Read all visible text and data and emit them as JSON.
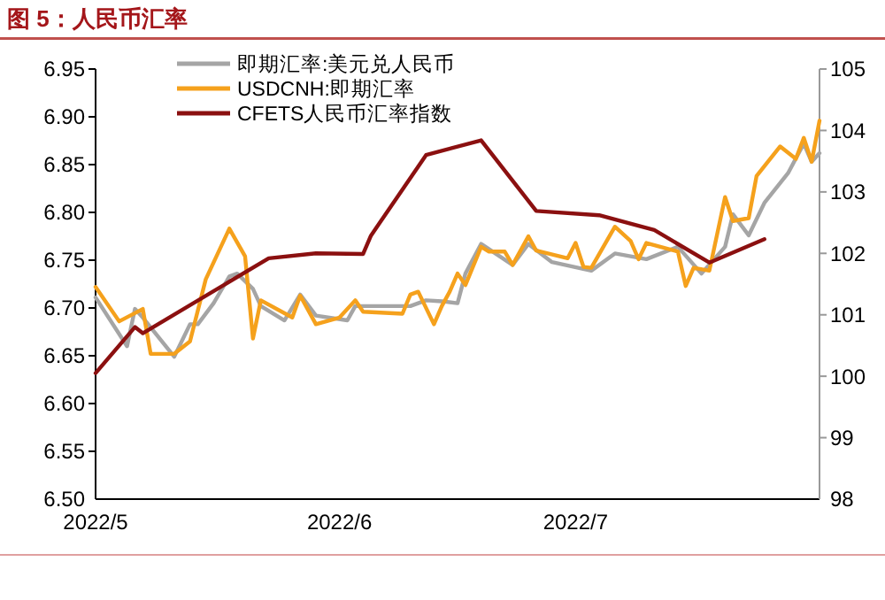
{
  "chart_data": {
    "type": "line",
    "title": "图 5：人民币汇率",
    "xlim": [
      "2022-05-01",
      "2022-08-01"
    ],
    "xticks": [
      {
        "value": "2022-05-01",
        "label": "2022/5"
      },
      {
        "value": "2022-06-01",
        "label": "2022/6"
      },
      {
        "value": "2022-07-01",
        "label": "2022/7"
      }
    ],
    "ylim": [
      6.5,
      6.95
    ],
    "yticks": [
      {
        "value": 6.5,
        "label": "6.50"
      },
      6.55,
      {
        "value": 6.6,
        "label": "6.60"
      },
      6.65,
      {
        "value": 6.7,
        "label": "6.70"
      },
      6.75,
      {
        "value": 6.8,
        "label": "6.80"
      },
      6.85,
      {
        "value": 6.9,
        "label": "6.90"
      },
      6.95
    ],
    "y2lim": [
      98,
      105
    ],
    "y2ticks": [
      98,
      99,
      100,
      101,
      102,
      103,
      104,
      105
    ],
    "legend": "top",
    "grid": false,
    "marker": "none",
    "line_style": "solid",
    "series": [
      {
        "name": "即期汇率:美元兑人民币",
        "color": "#a5a5a5",
        "x": [
          "2022-05-01",
          "2022-05-05",
          "2022-05-06",
          "2022-05-07",
          "2022-05-11",
          "2022-05-13",
          "2022-05-14",
          "2022-05-16",
          "2022-05-18",
          "2022-05-19",
          "2022-05-21",
          "2022-05-22",
          "2022-05-25",
          "2022-05-27",
          "2022-05-29",
          "2022-06-02",
          "2022-06-03",
          "2022-06-10",
          "2022-06-12",
          "2022-06-14",
          "2022-06-16",
          "2022-06-17",
          "2022-06-19",
          "2022-06-23",
          "2022-06-25",
          "2022-06-28",
          "2022-07-03",
          "2022-07-06",
          "2022-07-10",
          "2022-07-14",
          "2022-07-17",
          "2022-07-20",
          "2022-07-21",
          "2022-07-23",
          "2022-07-25",
          "2022-07-28",
          "2022-07-30",
          "2022-07-31",
          "2022-08-01"
        ],
        "values": [
          6.711,
          6.66,
          6.699,
          6.69,
          6.649,
          6.683,
          6.683,
          6.705,
          6.733,
          6.736,
          6.72,
          6.702,
          6.687,
          6.714,
          6.692,
          6.687,
          6.702,
          6.702,
          6.708,
          6.707,
          6.705,
          6.736,
          6.767,
          6.745,
          6.767,
          6.748,
          6.739,
          6.757,
          6.751,
          6.764,
          6.736,
          6.764,
          6.798,
          6.776,
          6.81,
          6.841,
          6.872,
          6.853,
          6.862
        ]
      },
      {
        "name": "USDCNH:即期汇率",
        "color": "#f5a11c",
        "x": [
          "2022-05-01",
          "2022-05-04",
          "2022-05-07",
          "2022-05-08",
          "2022-05-11",
          "2022-05-13",
          "2022-05-15",
          "2022-05-18",
          "2022-05-20",
          "2022-05-21",
          "2022-05-22",
          "2022-05-26",
          "2022-05-27",
          "2022-05-29",
          "2022-06-01",
          "2022-06-03",
          "2022-06-04",
          "2022-06-09",
          "2022-06-10",
          "2022-06-11",
          "2022-06-13",
          "2022-06-14",
          "2022-06-15",
          "2022-06-16",
          "2022-06-17",
          "2022-06-19",
          "2022-06-20",
          "2022-06-22",
          "2022-06-23",
          "2022-06-25",
          "2022-06-26",
          "2022-06-30",
          "2022-07-01",
          "2022-07-02",
          "2022-07-03",
          "2022-07-06",
          "2022-07-08",
          "2022-07-09",
          "2022-07-10",
          "2022-07-14",
          "2022-07-15",
          "2022-07-16",
          "2022-07-18",
          "2022-07-20",
          "2022-07-21",
          "2022-07-23",
          "2022-07-24",
          "2022-07-27",
          "2022-07-29",
          "2022-07-30",
          "2022-07-31",
          "2022-08-01"
        ],
        "values": [
          6.722,
          6.686,
          6.699,
          6.652,
          6.652,
          6.665,
          6.73,
          6.783,
          6.754,
          6.668,
          6.708,
          6.69,
          6.713,
          6.683,
          6.69,
          6.708,
          6.696,
          6.694,
          6.714,
          6.717,
          6.683,
          6.702,
          6.717,
          6.736,
          6.724,
          6.764,
          6.759,
          6.759,
          6.745,
          6.775,
          6.76,
          6.752,
          6.768,
          6.743,
          6.742,
          6.785,
          6.77,
          6.751,
          6.768,
          6.759,
          6.723,
          6.742,
          6.739,
          6.816,
          6.791,
          6.794,
          6.838,
          6.869,
          6.856,
          6.878,
          6.853,
          6.896
        ]
      },
      {
        "name": "CFETS人民币汇率指数",
        "color": "#8b1010",
        "axis": "y2",
        "x": [
          "2022-05-01",
          "2022-05-06",
          "2022-05-07",
          "2022-05-23",
          "2022-05-29",
          "2022-06-04",
          "2022-06-05",
          "2022-06-12",
          "2022-06-19",
          "2022-06-26",
          "2022-07-04",
          "2022-07-11",
          "2022-07-18",
          "2022-07-25"
        ],
        "values": [
          100.05,
          100.8,
          100.7,
          101.92,
          102.0,
          101.99,
          102.29,
          103.6,
          103.84,
          102.69,
          102.62,
          102.38,
          101.85,
          102.23
        ]
      }
    ]
  }
}
